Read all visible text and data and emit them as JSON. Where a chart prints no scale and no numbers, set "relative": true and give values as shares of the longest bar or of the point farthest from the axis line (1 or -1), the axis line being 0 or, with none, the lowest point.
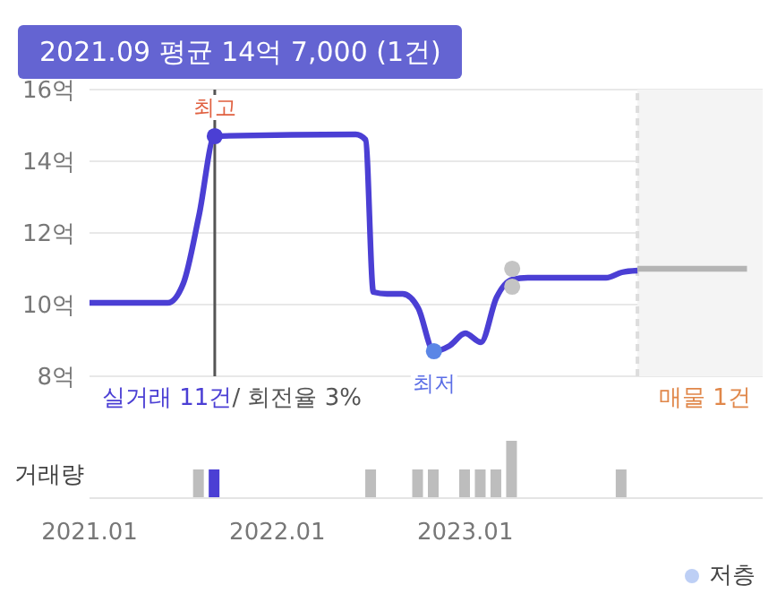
{
  "chart_data": [
    {
      "type": "line",
      "annotations": [
        "2021.09 평균 14억 7,000 (1건)",
        "실거래 11건",
        "/ 회전율 3%",
        "매물 1건",
        {
          "text": "최고",
          "x": "2021-09",
          "y": 14.7
        },
        {
          "text": "최저",
          "x": "2022-11",
          "y": 8.7
        }
      ],
      "xlim": [
        "2021-01",
        "2024-08"
      ],
      "ylim": [
        8,
        16
      ],
      "yticks": [
        {
          "value": 8,
          "label": "8억"
        },
        {
          "value": 10,
          "label": "10억"
        },
        {
          "value": 12,
          "label": "12억"
        },
        {
          "value": 14,
          "label": "14억"
        },
        {
          "value": 16,
          "label": "16억"
        }
      ],
      "tick_labels": "y",
      "grid": "y",
      "legend": "bottom right",
      "line_style": "solid",
      "ref_lines": [
        {
          "axis": "x",
          "value": "2021-09",
          "color": "#555555",
          "line_style": "solid"
        },
        {
          "axis": "x",
          "value": "2023-12",
          "color": "#dddddd",
          "line_style": "dashed"
        }
      ],
      "bands": [
        {
          "axis": "x",
          "from": "2023-12",
          "to": "2024-08",
          "color": "#f4f4f4"
        }
      ],
      "series": [
        {
          "marker": "none",
          "color": "#4b3fd4",
          "x": [
            "2021-01",
            "2021-06",
            "2021-07",
            "2021-08",
            "2021-09",
            "2022-06",
            "2022-06-20",
            "2022-07-05",
            "2022-08",
            "2022-09",
            "2022-10",
            "2022-11",
            "2022-12",
            "2023-01",
            "2023-02",
            "2023-03",
            "2023-04",
            "2023-05",
            "2023-10",
            "2023-11",
            "2023-12"
          ],
          "values": [
            10.05,
            10.05,
            10.6,
            12.5,
            14.7,
            14.75,
            14.6,
            10.35,
            10.3,
            10.3,
            9.9,
            8.7,
            8.85,
            9.2,
            8.95,
            10.2,
            10.7,
            10.75,
            10.75,
            10.9,
            10.95
          ]
        },
        {
          "marker": "none",
          "color": "#b4b4b4",
          "x": [
            "2023-12",
            "2024-07"
          ],
          "values": [
            11.0,
            11.0
          ]
        },
        {
          "type": "scatter",
          "marker": "circle",
          "color": "#4b3fd4",
          "x": [
            "2021-09"
          ],
          "values": [
            14.7
          ]
        },
        {
          "type": "scatter",
          "marker": "circle",
          "color": "#c4c4c4",
          "x": [
            "2023-04",
            "2023-04"
          ],
          "values": [
            11.0,
            10.5
          ]
        },
        {
          "type": "scatter",
          "marker": "circle",
          "name": "저층",
          "color": "#5b86e6",
          "x": [
            "2022-11"
          ],
          "values": [
            8.7
          ]
        }
      ]
    },
    {
      "type": "bar",
      "relative": true,
      "ylabel": "거래량",
      "tick_labels": "x",
      "xlim": [
        "2021-01",
        "2024-08"
      ],
      "xticks": [
        {
          "value": "2021-01",
          "label": "2021.01"
        },
        {
          "value": "2022-01",
          "label": "2022.01"
        },
        {
          "value": "2023-01",
          "label": "2023.01"
        }
      ],
      "x": [
        "2021-08",
        "2021-09",
        "2022-07",
        "2022-10",
        "2022-11",
        "2023-01",
        "2023-02",
        "2023-03",
        "2023-04",
        "2023-11"
      ],
      "values": [
        0.5,
        0.5,
        0.5,
        0.5,
        0.5,
        0.5,
        0.5,
        0.5,
        1,
        0.5
      ],
      "colors": [
        "#bdbdbd",
        "#4b3fd4",
        "#bdbdbd",
        "#bdbdbd",
        "#bdbdbd",
        "#bdbdbd",
        "#bdbdbd",
        "#bdbdbd",
        "#bdbdbd",
        "#bdbdbd"
      ]
    }
  ]
}
